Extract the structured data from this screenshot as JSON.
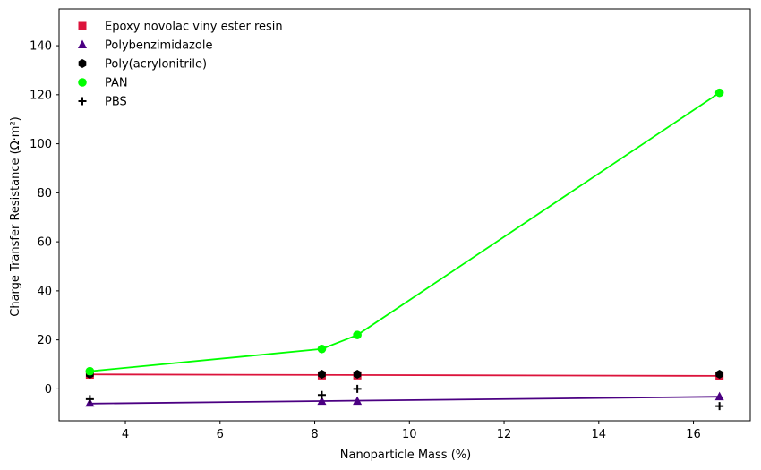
{
  "chart_data": {
    "type": "scatter",
    "title": "",
    "xlabel": "Nanoparticle Mass (%)",
    "ylabel": "Charge Transfer Resistance (Ω·m²)",
    "xlim": [
      2.6,
      17.2
    ],
    "ylim": [
      -13,
      155
    ],
    "xticks": [
      4,
      6,
      8,
      10,
      12,
      14,
      16
    ],
    "yticks": [
      0,
      20,
      40,
      60,
      80,
      100,
      120,
      140
    ],
    "grid": false,
    "legend_position": "top-left",
    "series": [
      {
        "name": "Epoxy novolac viny ester resin",
        "marker": "square",
        "color": "#dc143c",
        "x": [
          3.25,
          8.15,
          8.9,
          16.55
        ],
        "y": [
          5.8,
          5.5,
          5.5,
          5.3
        ],
        "fit_line": {
          "x": [
            3.25,
            16.55
          ],
          "y": [
            5.9,
            5.3
          ]
        }
      },
      {
        "name": "Polybenzimidazole",
        "marker": "triangle",
        "color": "#4b0082",
        "x": [
          3.25,
          8.15,
          8.9,
          16.55
        ],
        "y": [
          -5.8,
          -5.0,
          -5.0,
          -3.2
        ],
        "fit_line": {
          "x": [
            3.25,
            16.55
          ],
          "y": [
            -6.0,
            -3.2
          ]
        }
      },
      {
        "name": "Poly(acrylonitrile)",
        "marker": "hexagon",
        "color": "#000000",
        "x": [
          3.25,
          8.15,
          8.9,
          16.55
        ],
        "y": [
          6.0,
          6.0,
          6.0,
          6.0
        ]
      },
      {
        "name": "PAN",
        "marker": "circle",
        "color": "#00ff00",
        "x": [
          3.25,
          8.15,
          8.9,
          16.55
        ],
        "y": [
          7.2,
          16.3,
          22.0,
          120.8
        ],
        "connect": true
      },
      {
        "name": "PBS",
        "marker": "plus",
        "color": "#000000",
        "x": [
          3.25,
          8.15,
          8.9,
          16.55
        ],
        "y": [
          -4.2,
          -2.5,
          0.0,
          -7.0
        ]
      }
    ]
  }
}
